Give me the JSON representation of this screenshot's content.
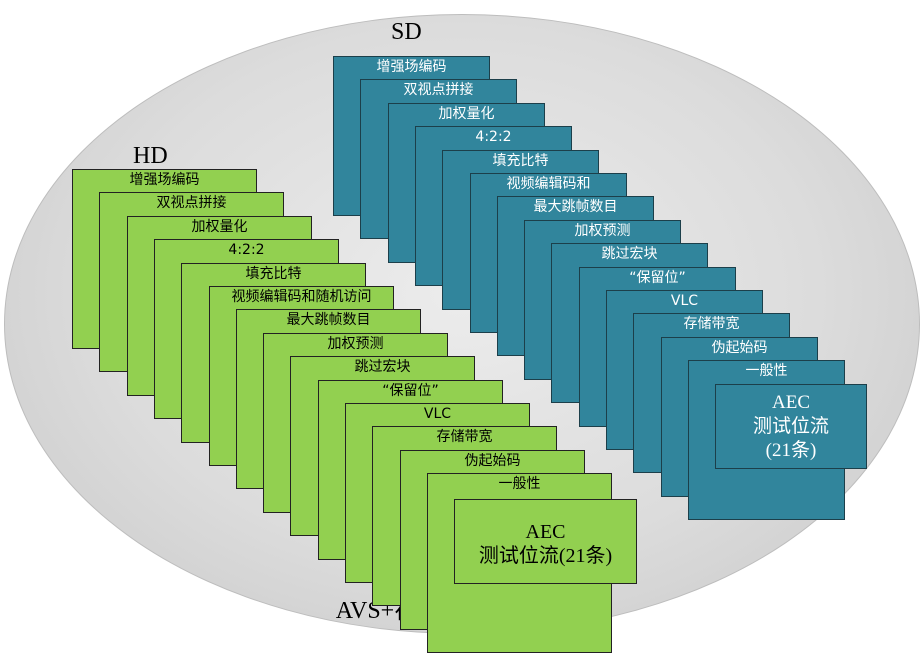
{
  "hd": {
    "title": "HD",
    "items": [
      "增强场编码",
      "双视点拼接",
      "加权量化",
      "4:2:2",
      "填充比特",
      "视频编辑码和随机访问",
      "最大跳帧数目",
      "加权预测",
      "跳过宏块",
      "“保留位”",
      "VLC",
      "存储带宽",
      "伪起始码",
      "一般性"
    ],
    "last": [
      "AEC",
      "测试位流(21条)"
    ]
  },
  "sd": {
    "title": "SD",
    "items": [
      "增强场编码",
      "双视点拼接",
      "加权量化",
      "4:2:2",
      "填充比特",
      "视频编辑码和",
      "最大跳帧数目",
      "加权预测",
      "跳过宏块",
      "“保留位”",
      "VLC",
      "存储带宽",
      "伪起始码",
      "一般性"
    ],
    "last": [
      "AEC",
      "测试位流",
      "(21条)"
    ]
  },
  "caption": "AVS+符合性测试码流集",
  "colors": {
    "hd_card": "#92d050",
    "sd_card": "#31859c",
    "background": "#d9d9d9"
  }
}
